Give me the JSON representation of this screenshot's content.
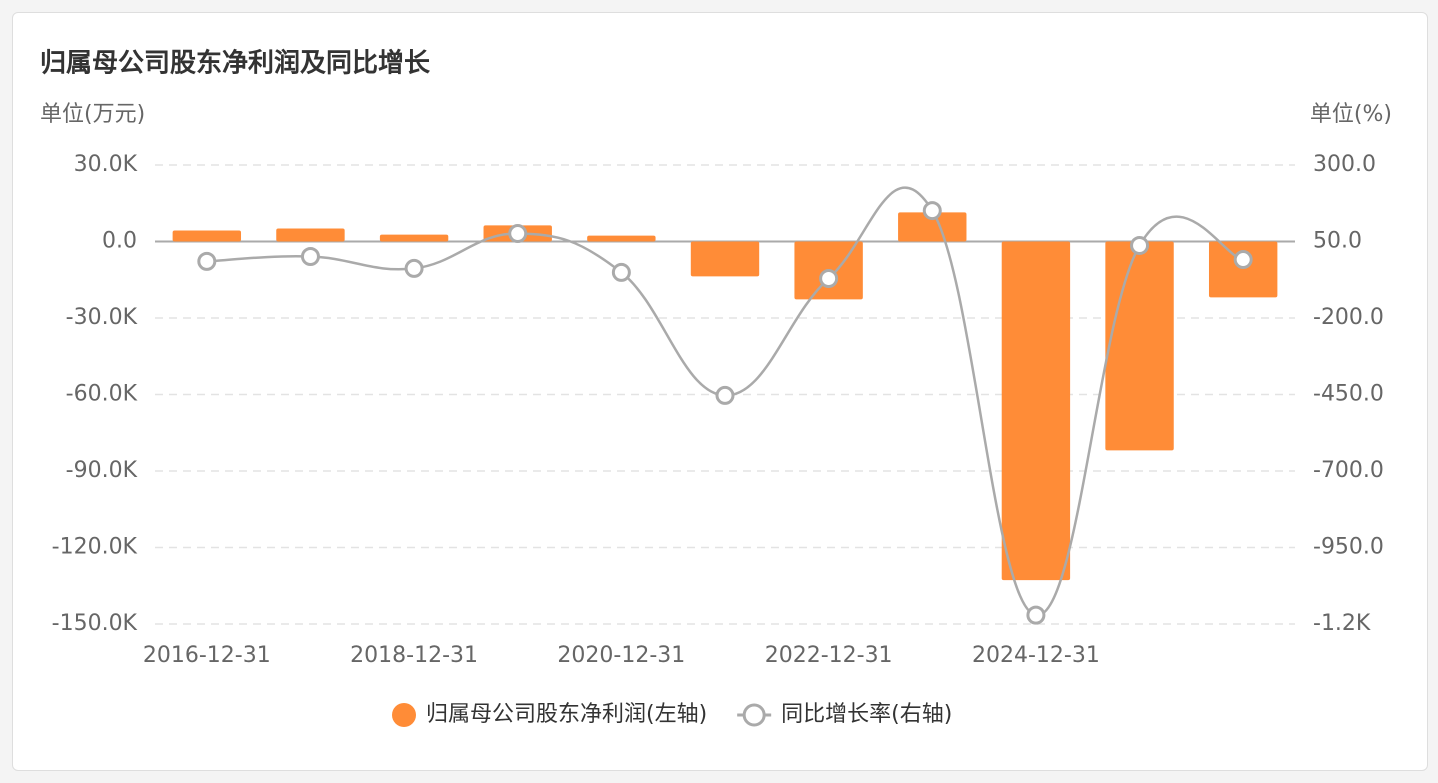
{
  "chart_data": {
    "type": "bar-line",
    "title": "归属母公司股东净利润及同比增长",
    "y_unit": "单位(万元)",
    "y2_unit": "单位(%)",
    "categories": [
      "2016-12-31",
      null,
      "2018-12-31",
      null,
      "2020-12-31",
      null,
      "2022-12-31",
      null,
      "2024-12-31",
      null,
      null
    ],
    "series": [
      {
        "name": "归属母公司股东净利润(左轴)",
        "type": "bar",
        "color": "#ff8c37",
        "values": [
          4300,
          5100,
          2700,
          6300,
          2300,
          -13700,
          -22700,
          11400,
          -132800,
          -81900,
          -21900
        ]
      },
      {
        "name": "同比增长率(右轴)",
        "type": "line",
        "axis": "y2",
        "color": "#aaaaaa",
        "values": [
          -15,
          1,
          -38,
          76,
          -51,
          -453,
          -71,
          151,
          -1171,
          37,
          -9
        ]
      }
    ],
    "ylim": [
      -150000,
      30000
    ],
    "yticks": [
      {
        "value": -150000,
        "label": "-150.0K"
      },
      {
        "value": -120000,
        "label": "-120.0K"
      },
      {
        "value": -90000,
        "label": "-90.0K"
      },
      {
        "value": -60000,
        "label": "-60.0K"
      },
      {
        "value": -30000,
        "label": "-30.0K"
      },
      {
        "value": 0,
        "label": "0.0"
      },
      {
        "value": 30000,
        "label": "30.0K"
      }
    ],
    "y2lim": [
      -1200,
      300
    ],
    "y2ticks": [
      {
        "value": -1200,
        "label": "-1.2K"
      },
      {
        "value": -950,
        "label": "-950.0"
      },
      {
        "value": -700,
        "label": "-700.0"
      },
      {
        "value": -450,
        "label": "-450.0"
      },
      {
        "value": -200,
        "label": "-200.0"
      },
      {
        "value": 50,
        "label": "50.0"
      },
      {
        "value": 300,
        "label": "300.0"
      }
    ],
    "grid": true
  }
}
